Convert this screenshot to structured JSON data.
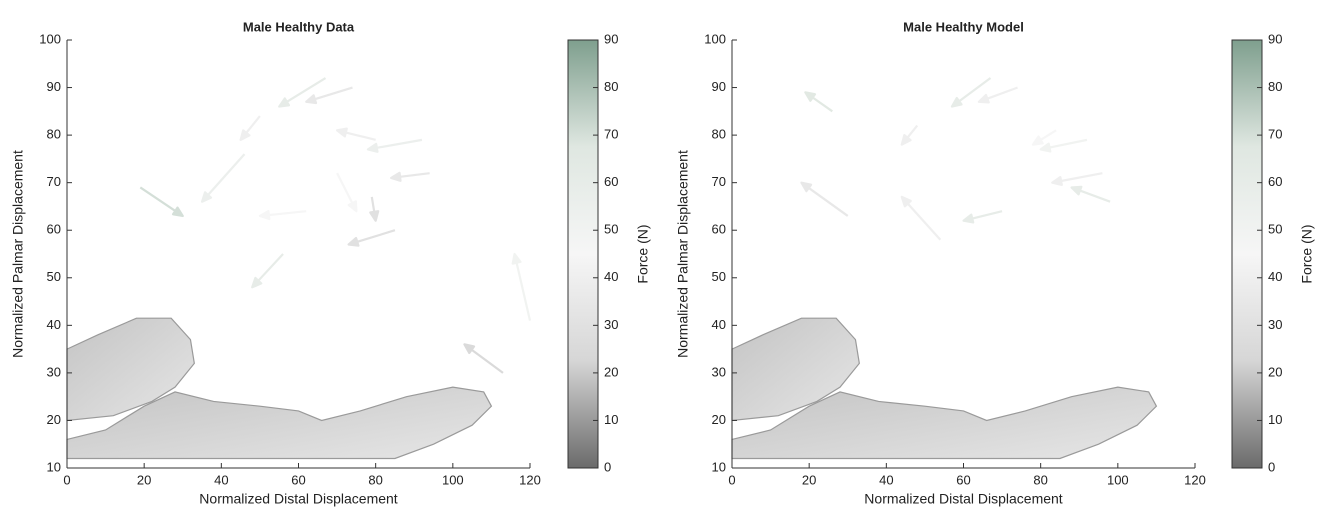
{
  "chart_data": [
    {
      "type": "quiver",
      "title": "Male Healthy Data",
      "xlabel": "Normalized Distal Displacement",
      "ylabel": "Normalized Palmar Displacement",
      "xlim": [
        0,
        120
      ],
      "ylim": [
        10,
        100
      ],
      "xticks": [
        0,
        20,
        40,
        60,
        80,
        100,
        120
      ],
      "yticks": [
        10,
        20,
        30,
        40,
        50,
        60,
        70,
        80,
        90,
        100
      ],
      "colorbar_label": "Force (N)",
      "clim": [
        0,
        90
      ],
      "cticks": [
        0,
        10,
        20,
        30,
        40,
        50,
        60,
        70,
        80,
        90
      ],
      "colormap": [
        "#6b6b6b",
        "#d6d6d6",
        "#f6f6f6",
        "#dfe7e1",
        "#7f9f8e"
      ],
      "x": [
        74,
        67,
        50,
        46,
        19,
        62,
        56,
        85,
        94,
        120,
        113,
        80,
        92,
        79,
        70
      ],
      "y": [
        90,
        92,
        84,
        76,
        69,
        64,
        55,
        60,
        72,
        41,
        30,
        79,
        79,
        67,
        72
      ],
      "u": [
        -12,
        -12,
        -5,
        -11,
        11,
        -12,
        -8,
        -12,
        -10,
        -4,
        -10,
        -10,
        -14,
        1,
        5
      ],
      "v": [
        -3,
        -6,
        -5,
        -10,
        -6,
        -1,
        -7,
        -3,
        -1,
        14,
        6,
        2,
        -2,
        -5,
        -8
      ],
      "force": [
        35,
        60,
        40,
        55,
        70,
        45,
        60,
        30,
        35,
        50,
        25,
        40,
        55,
        30,
        45
      ]
    },
    {
      "type": "quiver",
      "title": "Male Healthy Model",
      "xlabel": "Normalized Distal Displacement",
      "ylabel": "Normalized Palmar Displacement",
      "xlim": [
        0,
        120
      ],
      "ylim": [
        10,
        100
      ],
      "xticks": [
        0,
        20,
        40,
        60,
        80,
        100,
        120
      ],
      "yticks": [
        10,
        20,
        30,
        40,
        50,
        60,
        70,
        80,
        90,
        100
      ],
      "colorbar_label": "Force (N)",
      "clim": [
        0,
        90
      ],
      "cticks": [
        0,
        10,
        20,
        30,
        40,
        50,
        60,
        70,
        80,
        90
      ],
      "colormap": [
        "#6b6b6b",
        "#d6d6d6",
        "#f6f6f6",
        "#dfe7e1",
        "#7f9f8e"
      ],
      "x": [
        74,
        67,
        48,
        30,
        54,
        26,
        96,
        84,
        92,
        70,
        98
      ],
      "y": [
        90,
        92,
        82,
        63,
        58,
        85,
        72,
        81,
        79,
        64,
        66
      ],
      "u": [
        -10,
        -10,
        -4,
        -12,
        -10,
        -7,
        -13,
        -6,
        -12,
        -10,
        -10
      ],
      "v": [
        -3,
        -6,
        -4,
        7,
        9,
        4,
        -2,
        -3,
        -2,
        -2,
        3
      ],
      "force": [
        40,
        60,
        40,
        35,
        40,
        65,
        40,
        45,
        50,
        60,
        60
      ]
    }
  ]
}
